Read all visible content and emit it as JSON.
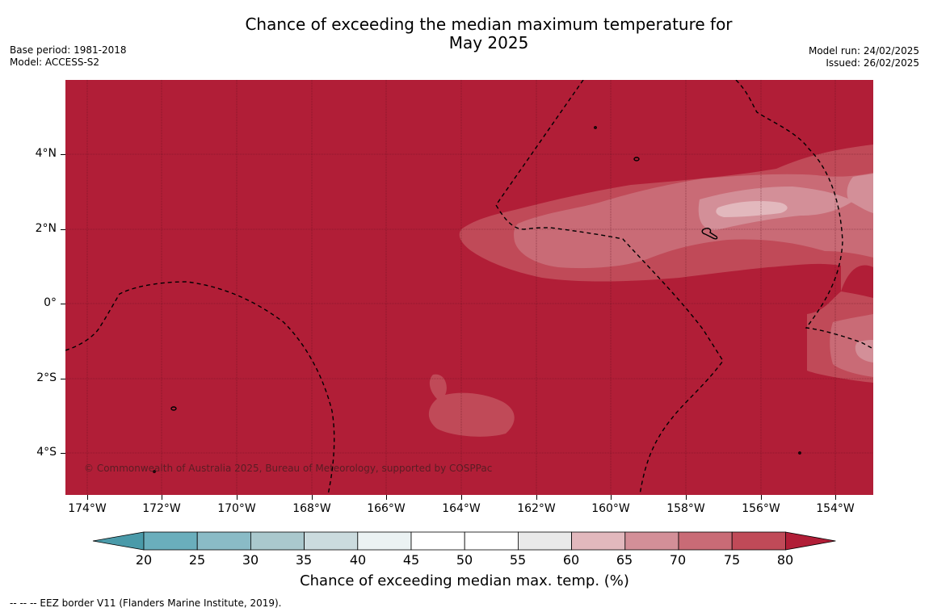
{
  "title_line1": "Chance of exceeding the median maximum temperature for",
  "title_line2": "May 2025",
  "base_period": "Base period: 1981-2018",
  "model": "Model: ACCESS-S2",
  "model_run": "Model run: 24/02/2025",
  "issued": "Issued: 26/02/2025",
  "copyright": "© Commonwealth of Australia 2025, Bureau of Meteorology, supported by COSPPac",
  "lat_labels": [
    "4°N",
    "2°N",
    "0°",
    "2°S",
    "4°S"
  ],
  "lon_labels": [
    "174°W",
    "172°W",
    "170°W",
    "168°W",
    "166°W",
    "164°W",
    "162°W",
    "160°W",
    "158°W",
    "156°W",
    "154°W"
  ],
  "colorbar": {
    "ticks": [
      "20",
      "25",
      "30",
      "35",
      "40",
      "45",
      "50",
      "55",
      "60",
      "65",
      "70",
      "75",
      "80"
    ],
    "colors": [
      "#4a9aa9",
      "#6aaebc",
      "#8abbc6",
      "#aac8cd",
      "#cbdbde",
      "#ebf2f3",
      "#ffffff",
      "#ffffff",
      "#e9e9e9",
      "#e2b8bd",
      "#d38f98",
      "#c96b76",
      "#c04a58",
      "#b11e37"
    ],
    "label": "Chance of exceeding median max. temp. (%)"
  },
  "eez_legend": "--  --  -- EEZ border V11 (Flanders Marine Institute, 2019)."
}
